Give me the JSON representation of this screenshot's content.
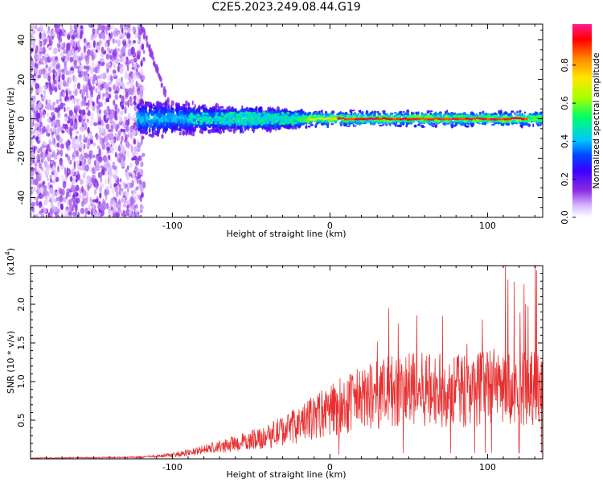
{
  "title": "C2E5.2023.249.08.44.G19",
  "chart_data": [
    {
      "type": "heatmap",
      "xlabel": "Height of straight line (km)",
      "ylabel": "Frequency (Hz)",
      "xlim": [
        -190,
        135
      ],
      "ylim": [
        -50,
        48
      ],
      "x_ticks": [
        -100,
        0,
        100
      ],
      "y_ticks": [
        -40,
        -20,
        0,
        20,
        40
      ],
      "colorbar": {
        "label": "Normalized spectral amplitude",
        "range": [
          0,
          1
        ],
        "ticks": [
          "0.0",
          "0.2",
          "0.4",
          "0.6",
          "0.8"
        ],
        "colors": [
          "#ffffff",
          "#d9b8ff",
          "#8a2be2",
          "#3b00ff",
          "#0044ff",
          "#00c8ff",
          "#00ff66",
          "#aaff00",
          "#ffe600",
          "#ff8800",
          "#ff0000",
          "#ff1a8c"
        ]
      },
      "regions": [
        {
          "description_free": true,
          "x_range": [
            -190,
            -120
          ],
          "amplitude": 0.1
        },
        {
          "x_range": [
            -120,
            -20
          ],
          "center_freq": 0,
          "half_width": 8,
          "amplitude": 0.35
        },
        {
          "x_range": [
            -20,
            135
          ],
          "center_freq": 0,
          "half_width": 3,
          "amplitude": 0.9
        }
      ]
    },
    {
      "type": "line",
      "xlabel": "Height of straight line (km)",
      "ylabel": "SNR (10 * v/v)",
      "multiplier": "(x10^4)",
      "xlim": [
        -190,
        135
      ],
      "ylim": [
        0,
        2.5
      ],
      "x_ticks": [
        -100,
        0,
        100
      ],
      "y_ticks": [
        0.5,
        1.0,
        1.5,
        2.0
      ],
      "y_tick_labels": [
        "0.5",
        "1.0",
        "1.5",
        "2.0"
      ],
      "color": "#e83030",
      "trend": {
        "x": [
          -190,
          -120,
          -100,
          -80,
          -60,
          -40,
          -20,
          0,
          20,
          40,
          60,
          80,
          100,
          120,
          135
        ],
        "y": [
          0.01,
          0.02,
          0.05,
          0.12,
          0.2,
          0.3,
          0.45,
          0.65,
          0.8,
          0.9,
          0.92,
          0.9,
          0.95,
          0.95,
          0.95
        ]
      }
    }
  ]
}
